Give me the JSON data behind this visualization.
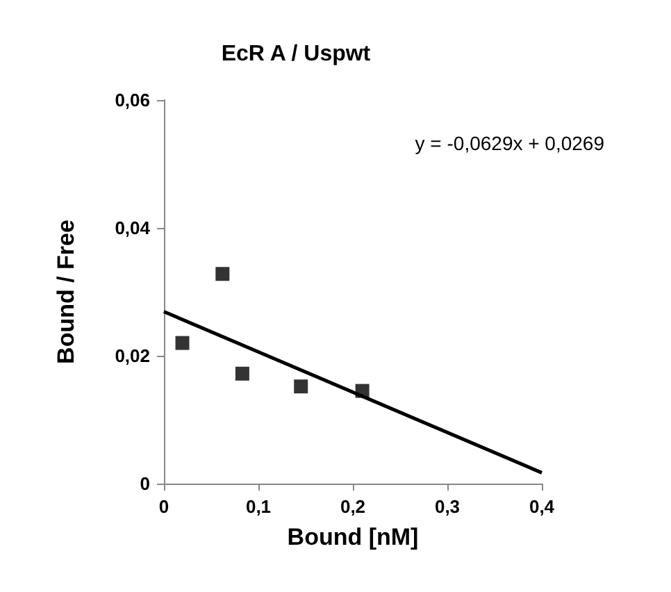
{
  "chart_data": {
    "type": "scatter",
    "title": "EcR A / Uspwt",
    "xlabel": "Bound [nM]",
    "ylabel": "Bound / Free",
    "annotations": [
      "y = -0,0629x + 0,0269"
    ],
    "series": [
      {
        "color": "#000000",
        "marker": "square",
        "x": [
          0.0195,
          0.062,
          0.083,
          0.145,
          0.21
        ],
        "values": [
          0.022,
          0.0328,
          0.0172,
          0.0152,
          0.0145
        ]
      },
      {
        "type": "line",
        "color": "#000000",
        "marker": "none",
        "line_style": "solid",
        "x": [
          0,
          0.4
        ],
        "values": [
          0.0269,
          0.0017
        ]
      }
    ],
    "xlim": [
      0,
      0.4
    ],
    "xticks": [
      0,
      {
        "value": 0.1,
        "label": "0,1"
      },
      {
        "value": 0.2,
        "label": "0,2"
      },
      {
        "value": 0.3,
        "label": "0,3"
      },
      {
        "value": 0.4,
        "label": "0,4"
      }
    ],
    "ylim": [
      0,
      0.06
    ],
    "yticks": [
      0,
      {
        "value": 0.02,
        "label": "0,02"
      },
      {
        "value": 0.04,
        "label": "0,04"
      },
      {
        "value": 0.06,
        "label": "0,06"
      }
    ],
    "grid": false
  }
}
